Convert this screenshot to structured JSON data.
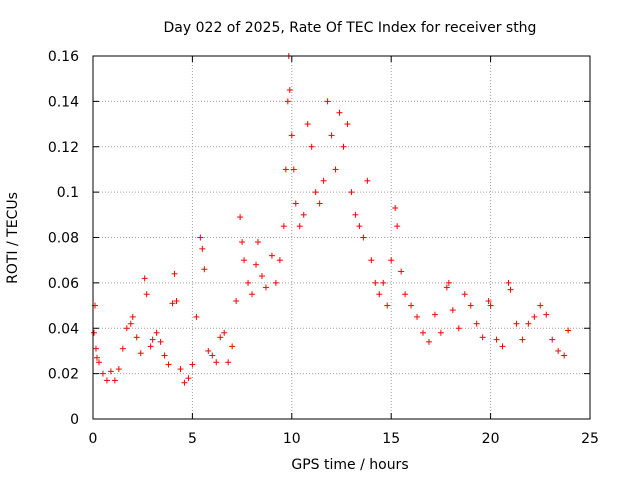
{
  "chart_data": {
    "type": "scatter",
    "title": "Day 022 of 2025, Rate Of TEC Index for receiver sthg",
    "xlabel": "GPS time / hours",
    "ylabel": "ROTI / TECUs",
    "xlim": [
      0,
      25
    ],
    "ylim": [
      0,
      0.16
    ],
    "xticks": [
      0,
      5,
      10,
      15,
      20,
      25
    ],
    "xtick_labels": [
      "0",
      "5",
      "10",
      "15",
      "20",
      "25"
    ],
    "yticks": [
      0,
      0.02,
      0.04,
      0.06,
      0.08,
      0.1,
      0.12,
      0.14,
      0.16
    ],
    "ytick_labels": [
      "0",
      "0.02",
      "0.04",
      "0.06",
      "0.08",
      "0.1",
      "0.12",
      "0.14",
      "0.16"
    ],
    "grid": true,
    "marker": "+",
    "color": "#ff0000",
    "series": [
      {
        "name": "ROTI",
        "points": [
          [
            0.05,
            0.038
          ],
          [
            0.1,
            0.05
          ],
          [
            0.15,
            0.031
          ],
          [
            0.2,
            0.027
          ],
          [
            0.3,
            0.025
          ],
          [
            0.5,
            0.02
          ],
          [
            0.7,
            0.017
          ],
          [
            0.9,
            0.021
          ],
          [
            1.1,
            0.017
          ],
          [
            1.3,
            0.022
          ],
          [
            1.5,
            0.031
          ],
          [
            1.7,
            0.04
          ],
          [
            1.9,
            0.042
          ],
          [
            2.0,
            0.045
          ],
          [
            2.2,
            0.036
          ],
          [
            2.4,
            0.029
          ],
          [
            2.6,
            0.062
          ],
          [
            2.7,
            0.055
          ],
          [
            2.9,
            0.032
          ],
          [
            3.0,
            0.035
          ],
          [
            3.2,
            0.038
          ],
          [
            3.4,
            0.034
          ],
          [
            3.6,
            0.028
          ],
          [
            3.8,
            0.024
          ],
          [
            4.0,
            0.051
          ],
          [
            4.1,
            0.064
          ],
          [
            4.2,
            0.052
          ],
          [
            4.4,
            0.022
          ],
          [
            4.6,
            0.016
          ],
          [
            4.8,
            0.018
          ],
          [
            5.0,
            0.024
          ],
          [
            5.2,
            0.045
          ],
          [
            5.4,
            0.08
          ],
          [
            5.5,
            0.075
          ],
          [
            5.6,
            0.066
          ],
          [
            5.8,
            0.03
          ],
          [
            6.0,
            0.028
          ],
          [
            6.2,
            0.025
          ],
          [
            6.4,
            0.036
          ],
          [
            6.6,
            0.038
          ],
          [
            6.8,
            0.025
          ],
          [
            7.0,
            0.032
          ],
          [
            7.2,
            0.052
          ],
          [
            7.4,
            0.089
          ],
          [
            7.5,
            0.078
          ],
          [
            7.6,
            0.07
          ],
          [
            7.8,
            0.06
          ],
          [
            8.0,
            0.055
          ],
          [
            8.2,
            0.068
          ],
          [
            8.3,
            0.078
          ],
          [
            8.5,
            0.063
          ],
          [
            8.7,
            0.058
          ],
          [
            9.0,
            0.072
          ],
          [
            9.2,
            0.06
          ],
          [
            9.4,
            0.07
          ],
          [
            9.6,
            0.085
          ],
          [
            9.7,
            0.11
          ],
          [
            9.8,
            0.14
          ],
          [
            9.85,
            0.16
          ],
          [
            9.9,
            0.145
          ],
          [
            10.0,
            0.125
          ],
          [
            10.1,
            0.11
          ],
          [
            10.2,
            0.095
          ],
          [
            10.4,
            0.085
          ],
          [
            10.6,
            0.09
          ],
          [
            10.8,
            0.13
          ],
          [
            11.0,
            0.12
          ],
          [
            11.2,
            0.1
          ],
          [
            11.4,
            0.095
          ],
          [
            11.6,
            0.105
          ],
          [
            11.8,
            0.14
          ],
          [
            12.0,
            0.125
          ],
          [
            12.2,
            0.11
          ],
          [
            12.4,
            0.135
          ],
          [
            12.6,
            0.12
          ],
          [
            12.8,
            0.13
          ],
          [
            13.0,
            0.1
          ],
          [
            13.2,
            0.09
          ],
          [
            13.4,
            0.085
          ],
          [
            13.6,
            0.08
          ],
          [
            13.8,
            0.105
          ],
          [
            14.0,
            0.07
          ],
          [
            14.2,
            0.06
          ],
          [
            14.4,
            0.055
          ],
          [
            14.6,
            0.06
          ],
          [
            14.8,
            0.05
          ],
          [
            15.0,
            0.07
          ],
          [
            15.2,
            0.093
          ],
          [
            15.3,
            0.085
          ],
          [
            15.5,
            0.065
          ],
          [
            15.7,
            0.055
          ],
          [
            16.0,
            0.05
          ],
          [
            16.3,
            0.045
          ],
          [
            16.6,
            0.038
          ],
          [
            16.9,
            0.034
          ],
          [
            17.2,
            0.046
          ],
          [
            17.5,
            0.038
          ],
          [
            17.8,
            0.058
          ],
          [
            17.9,
            0.06
          ],
          [
            18.1,
            0.048
          ],
          [
            18.4,
            0.04
          ],
          [
            18.7,
            0.055
          ],
          [
            19.0,
            0.05
          ],
          [
            19.3,
            0.042
          ],
          [
            19.6,
            0.036
          ],
          [
            19.9,
            0.052
          ],
          [
            20.0,
            0.05
          ],
          [
            20.3,
            0.035
          ],
          [
            20.6,
            0.032
          ],
          [
            20.9,
            0.06
          ],
          [
            21.0,
            0.057
          ],
          [
            21.3,
            0.042
          ],
          [
            21.6,
            0.035
          ],
          [
            21.9,
            0.042
          ],
          [
            22.2,
            0.045
          ],
          [
            22.5,
            0.05
          ],
          [
            22.8,
            0.046
          ],
          [
            23.1,
            0.035
          ],
          [
            23.4,
            0.03
          ],
          [
            23.7,
            0.028
          ],
          [
            23.9,
            0.039
          ]
        ]
      }
    ]
  }
}
